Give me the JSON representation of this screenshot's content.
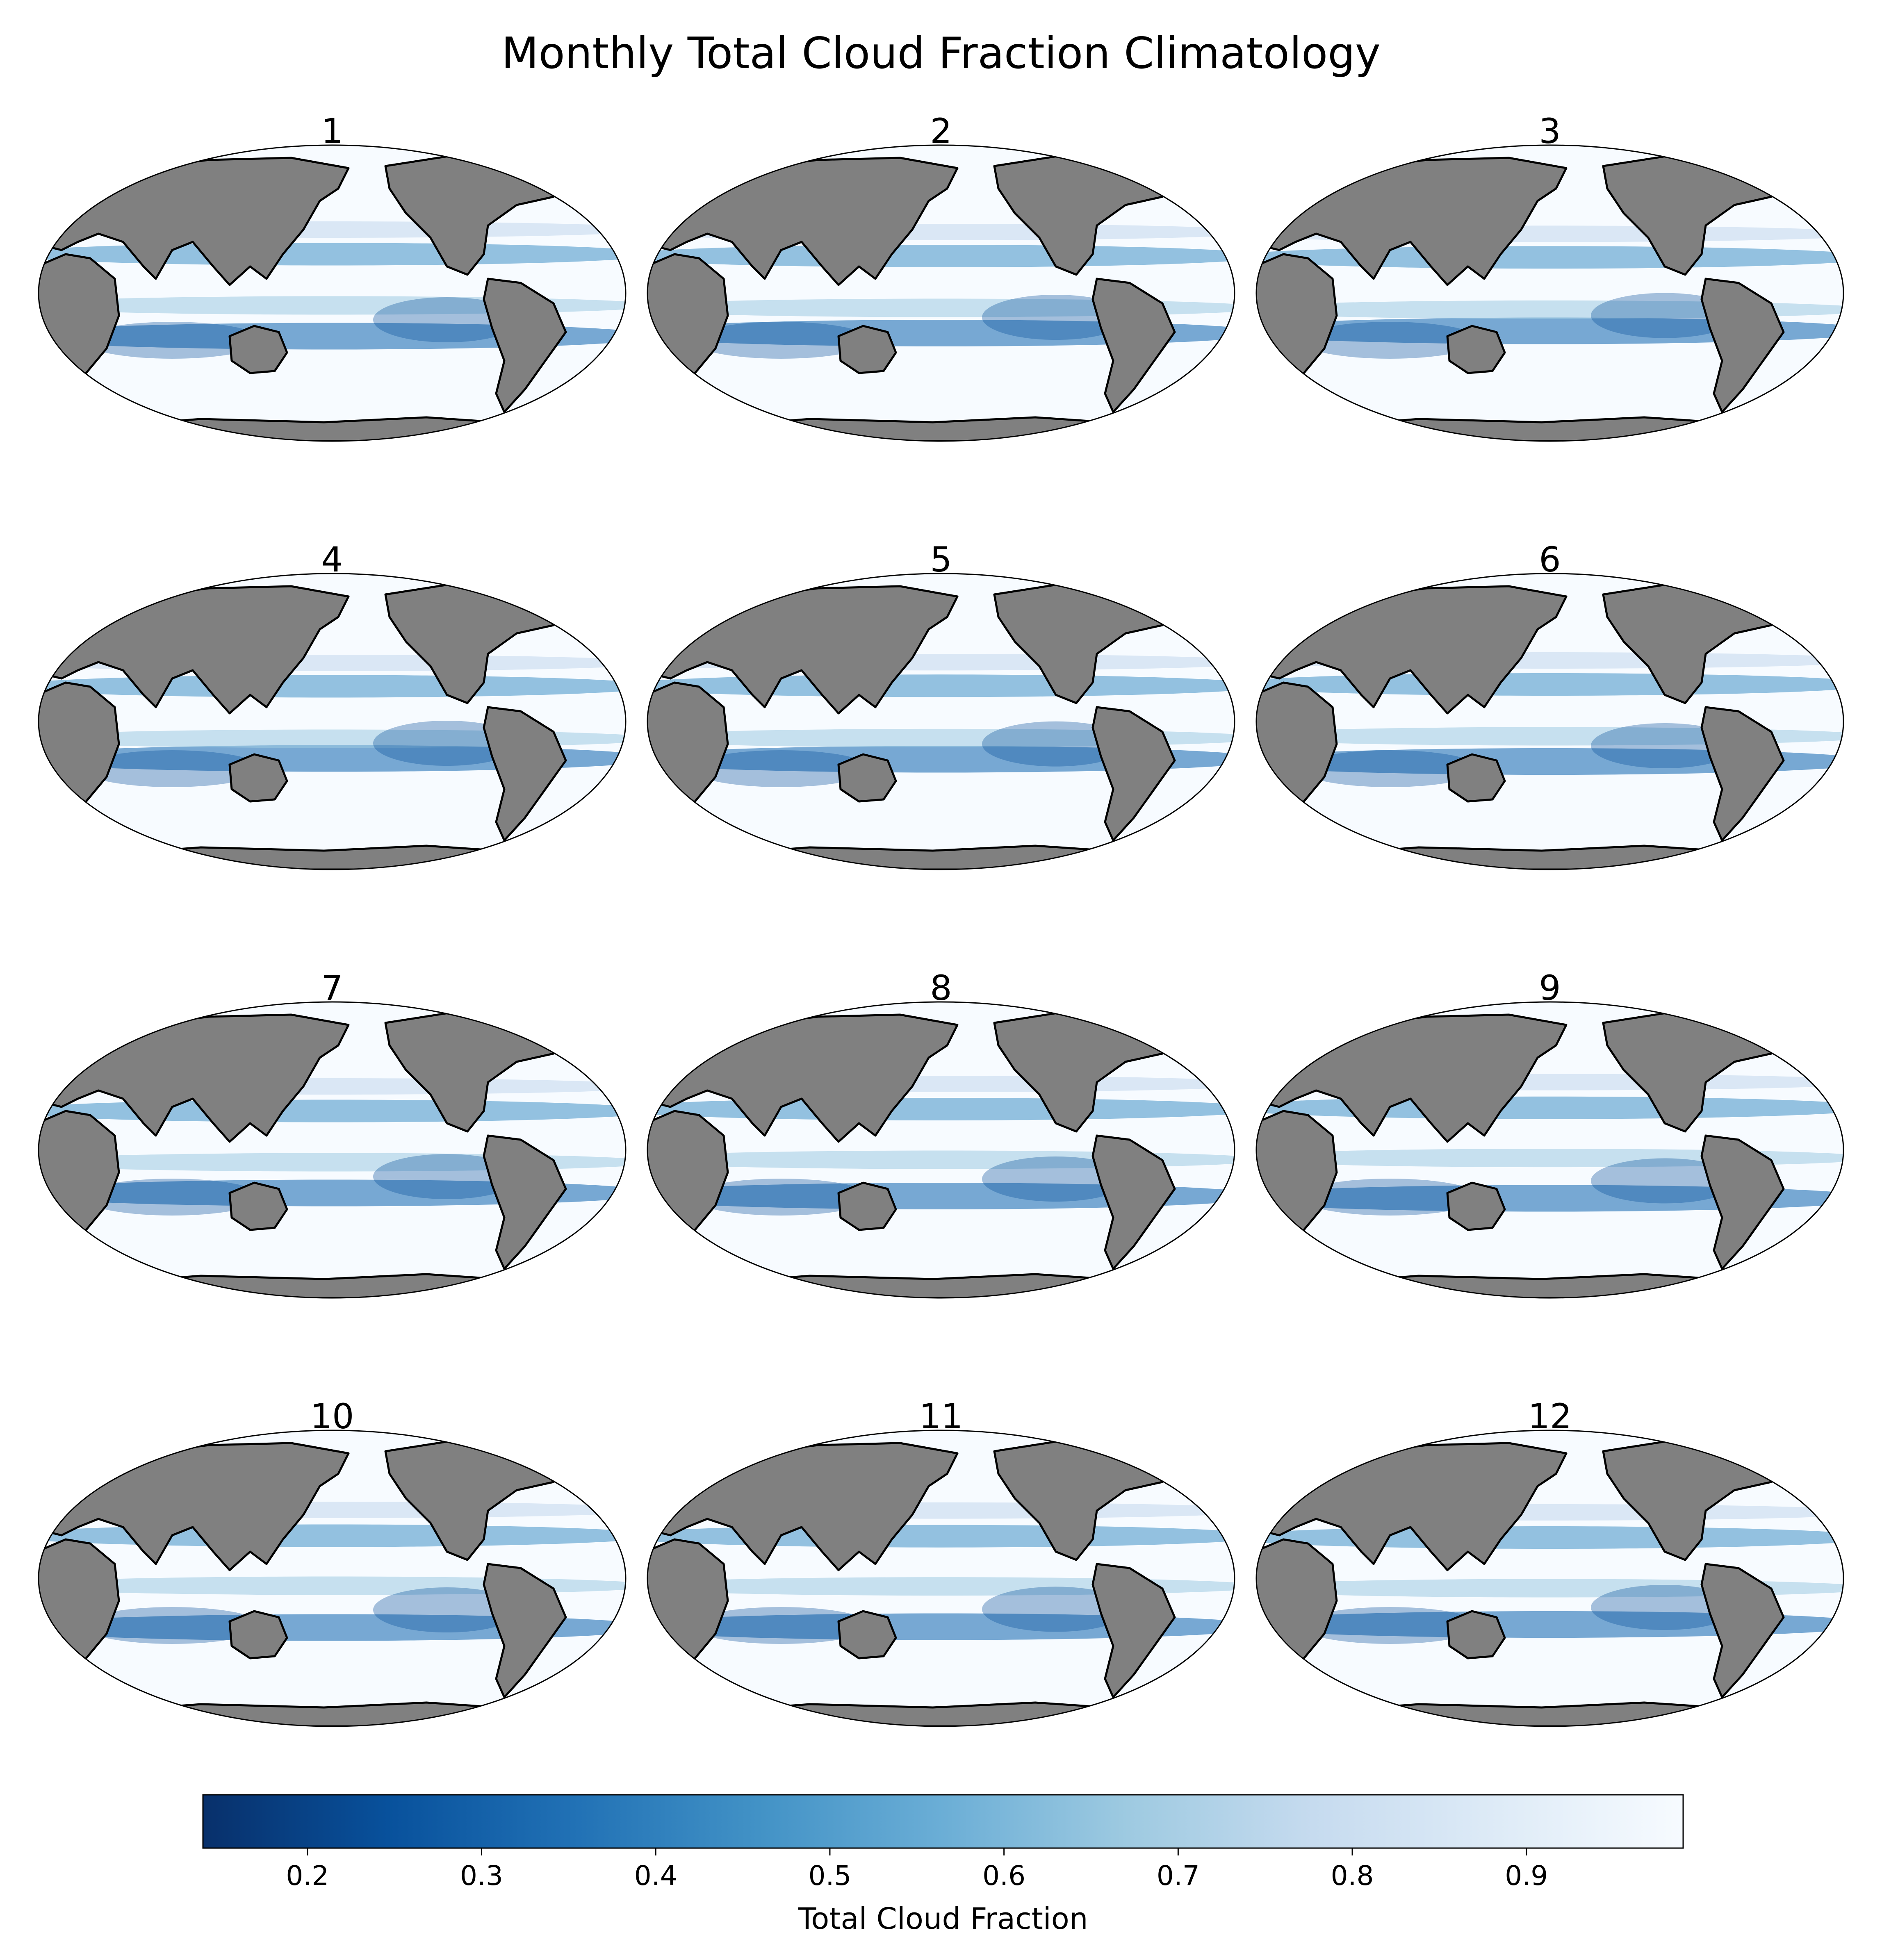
{
  "title": "Monthly Total Cloud Fraction Climatology",
  "panels": [
    {
      "title": "1"
    },
    {
      "title": "2"
    },
    {
      "title": "3"
    },
    {
      "title": "4"
    },
    {
      "title": "5"
    },
    {
      "title": "6"
    },
    {
      "title": "7"
    },
    {
      "title": "8"
    },
    {
      "title": "9"
    },
    {
      "title": "10"
    },
    {
      "title": "11"
    },
    {
      "title": "12"
    }
  ],
  "colorbar": {
    "label": "Total Cloud Fraction",
    "ticks": [
      "0.2",
      "0.3",
      "0.4",
      "0.5",
      "0.6",
      "0.7",
      "0.8",
      "0.9"
    ],
    "tick_values": [
      0.2,
      0.3,
      0.4,
      0.5,
      0.6,
      0.7,
      0.8,
      0.9
    ],
    "range": [
      0.14,
      0.99
    ],
    "colormap": "Blues_r",
    "colors": [
      "#08306b",
      "#08519c",
      "#2171b5",
      "#4292c6",
      "#6baed6",
      "#9ecae1",
      "#c6dbef",
      "#deebf7",
      "#f7fbff"
    ]
  },
  "map": {
    "projection": "Robinson (Pacific-centered)",
    "land_color": "#808080",
    "coastline_color": "#000000"
  }
}
